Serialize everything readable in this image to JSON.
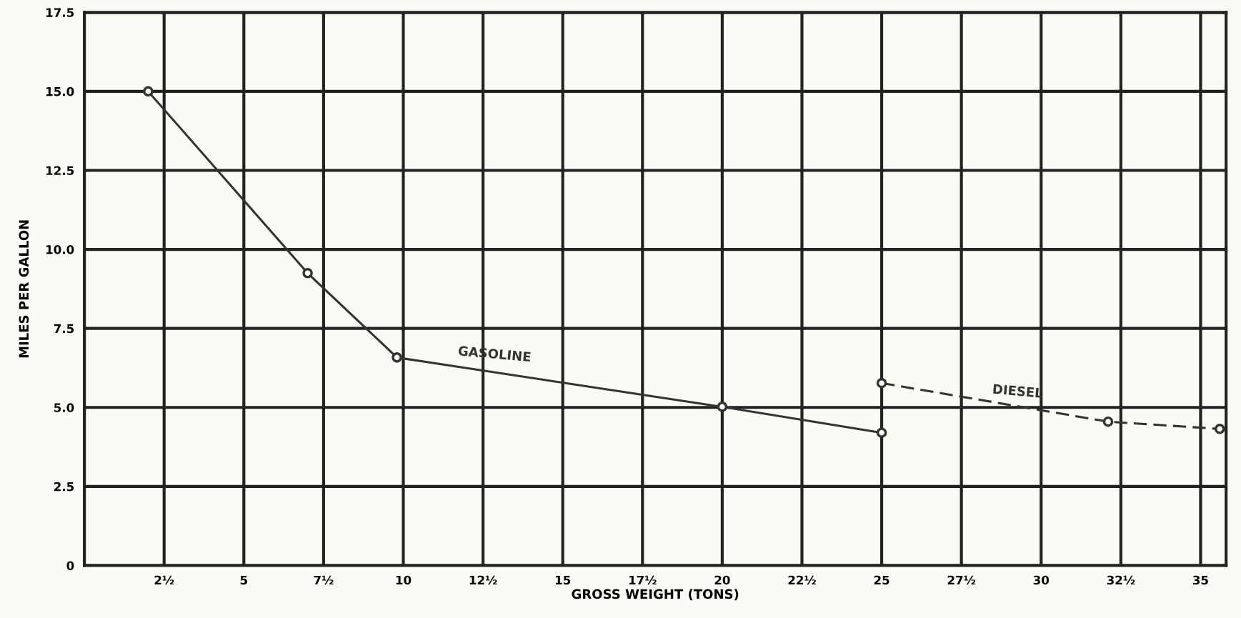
{
  "chart_data": {
    "type": "line",
    "xlabel": "GROSS WEIGHT (TONS)",
    "ylabel": "MILES PER GALLON",
    "xlim": [
      0,
      35.8
    ],
    "ylim": [
      0,
      17.5
    ],
    "xticks": [
      {
        "value": 2.5,
        "label": "2½"
      },
      5,
      {
        "value": 7.5,
        "label": "7½"
      },
      10,
      {
        "value": 12.5,
        "label": "12½"
      },
      15,
      {
        "value": 17.5,
        "label": "17½"
      },
      20,
      {
        "value": 22.5,
        "label": "22½"
      },
      25,
      {
        "value": 27.5,
        "label": "27½"
      },
      30,
      {
        "value": 32.5,
        "label": "32½"
      },
      35
    ],
    "yticks": [
      0,
      2.5,
      {
        "value": 5,
        "label": "5.0"
      },
      7.5,
      {
        "value": 10,
        "label": "10.0"
      },
      12.5,
      {
        "value": 15,
        "label": "15.0"
      },
      17.5
    ],
    "grid": true,
    "legend": false,
    "marker": "circle",
    "series": [
      {
        "name": "GASOLINE",
        "color": "#333333",
        "line_style": "solid",
        "x": [
          2,
          7,
          9.8,
          20,
          25
        ],
        "values": [
          15,
          9.25,
          6.58,
          5.02,
          4.2
        ]
      },
      {
        "name": "DIESEL",
        "color": "#333333",
        "line_style": "dashed",
        "x": [
          25,
          32.1,
          35.6
        ],
        "values": [
          5.77,
          4.55,
          4.32
        ]
      }
    ]
  }
}
